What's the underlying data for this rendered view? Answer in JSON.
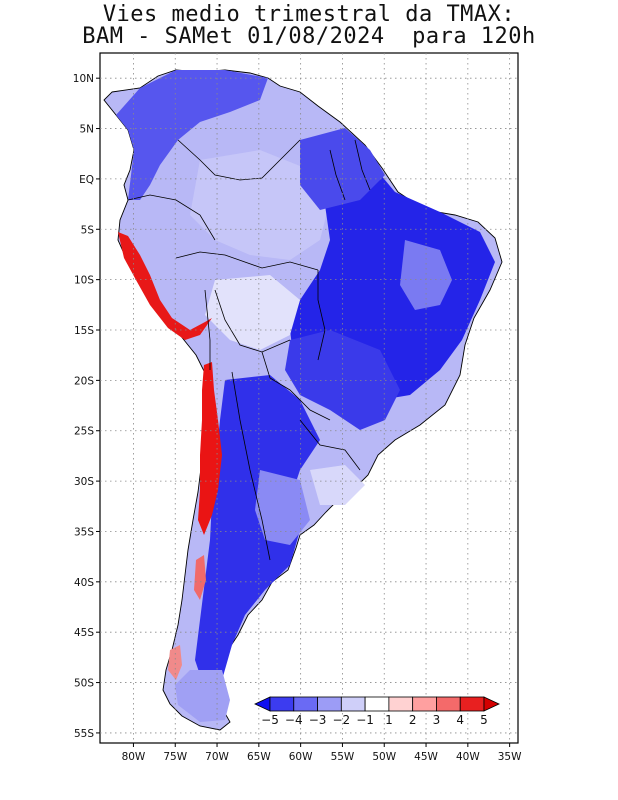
{
  "title": {
    "line1": "Vies medio trimestral da TMAX:",
    "line2": "BAM - SAMet 01/08/2024  para 120h"
  },
  "map": {
    "region": "South America",
    "lon_min": -84,
    "lon_max": -34,
    "lat_min": -56,
    "lat_max": 12.5,
    "lon_ticks": [
      {
        "value": -80,
        "label": "80W"
      },
      {
        "value": -75,
        "label": "75W"
      },
      {
        "value": -70,
        "label": "70W"
      },
      {
        "value": -65,
        "label": "65W"
      },
      {
        "value": -60,
        "label": "60W"
      },
      {
        "value": -55,
        "label": "55W"
      },
      {
        "value": -50,
        "label": "50W"
      },
      {
        "value": -45,
        "label": "45W"
      },
      {
        "value": -40,
        "label": "40W"
      },
      {
        "value": -35,
        "label": "35W"
      }
    ],
    "lat_ticks": [
      {
        "value": 10,
        "label": "10N"
      },
      {
        "value": 5,
        "label": "5N"
      },
      {
        "value": 0,
        "label": "EQ"
      },
      {
        "value": -5,
        "label": "5S"
      },
      {
        "value": -10,
        "label": "10S"
      },
      {
        "value": -15,
        "label": "15S"
      },
      {
        "value": -20,
        "label": "20S"
      },
      {
        "value": -25,
        "label": "25S"
      },
      {
        "value": -30,
        "label": "30S"
      },
      {
        "value": -35,
        "label": "35S"
      },
      {
        "value": -40,
        "label": "40S"
      },
      {
        "value": -45,
        "label": "45S"
      },
      {
        "value": -50,
        "label": "50S"
      },
      {
        "value": -55,
        "label": "55S"
      }
    ],
    "grid": "dotted"
  },
  "colorbar": {
    "ticks": [
      "-5",
      "-4",
      "-3",
      "-2",
      "-1",
      "1",
      "2",
      "3",
      "4",
      "5"
    ],
    "colors": [
      "#1010f0",
      "#3c3cf0",
      "#6a6af4",
      "#9c9cf6",
      "#cfcff9",
      "#ffffff",
      "#ffd2d2",
      "#ffa0a0",
      "#f46a6a",
      "#e82020",
      "#d40000"
    ],
    "extend": "both",
    "placement": "bottom-right"
  },
  "colors": {
    "cold_strong": "#1a1ae6",
    "cold_medium": "#5a5af0",
    "cold_light": "#a8a8f6",
    "near_zero": "#ffffff",
    "warm_strong": "#e81010",
    "coastline": "#000000"
  }
}
